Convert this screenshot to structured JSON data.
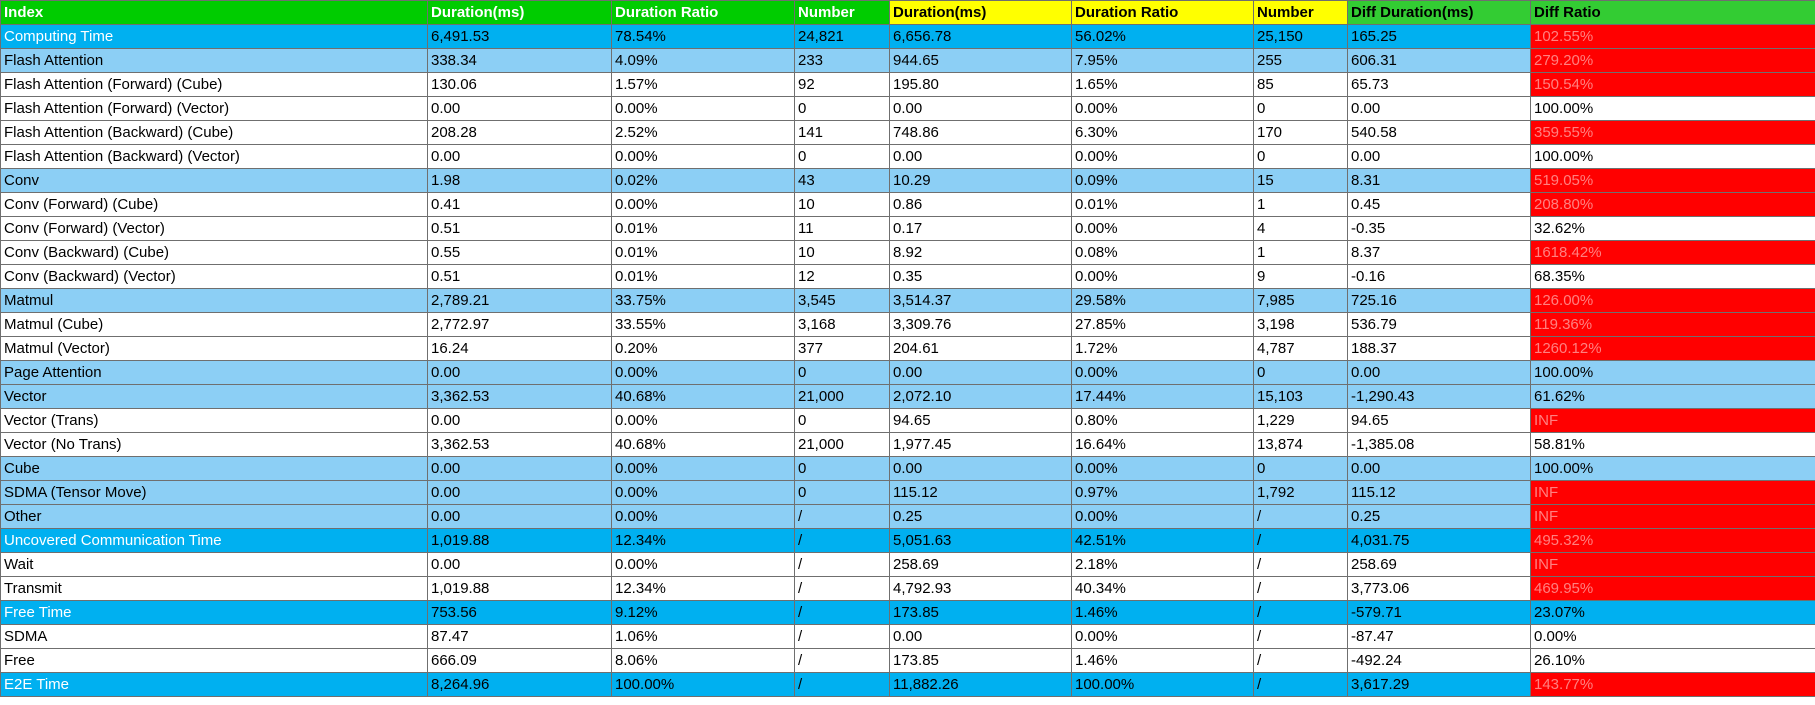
{
  "header": [
    {
      "label": "Index",
      "style": "green"
    },
    {
      "label": "Duration(ms)",
      "style": "green"
    },
    {
      "label": "Duration Ratio",
      "style": "green"
    },
    {
      "label": "Number",
      "style": "green"
    },
    {
      "label": "Duration(ms)",
      "style": "yellow"
    },
    {
      "label": "Duration Ratio",
      "style": "yellow"
    },
    {
      "label": "Number",
      "style": "yellow"
    },
    {
      "label": "Diff Duration(ms)",
      "style": "lgreen"
    },
    {
      "label": "Diff Ratio",
      "style": "lgreen"
    }
  ],
  "colors": {
    "header_base": "#00cc00",
    "header_compare": "#ffff00",
    "header_diff": "#33cc33",
    "top_level_row": "#00b0f0",
    "sub_level_row": "#8ccff5",
    "leaf_row": "#ffffff",
    "diff_alert": "#ff0000"
  },
  "rows": [
    {
      "name": "Computing Time",
      "level": 0,
      "vals": [
        "6,491.53",
        "78.54%",
        "24,821",
        "6,656.78",
        "56.02%",
        "25,150",
        "165.25",
        "102.55%"
      ],
      "red": true
    },
    {
      "name": "Flash Attention",
      "level": 1,
      "vals": [
        "338.34",
        "4.09%",
        "233",
        "944.65",
        "7.95%",
        "255",
        "606.31",
        "279.20%"
      ],
      "red": true
    },
    {
      "name": "Flash Attention (Forward) (Cube)",
      "level": 2,
      "vals": [
        "130.06",
        "1.57%",
        "92",
        "195.80",
        "1.65%",
        "85",
        "65.73",
        "150.54%"
      ],
      "red": true
    },
    {
      "name": "Flash Attention (Forward) (Vector)",
      "level": 2,
      "vals": [
        "0.00",
        "0.00%",
        "0",
        "0.00",
        "0.00%",
        "0",
        "0.00",
        "100.00%"
      ],
      "red": false
    },
    {
      "name": "Flash Attention (Backward) (Cube)",
      "level": 2,
      "vals": [
        "208.28",
        "2.52%",
        "141",
        "748.86",
        "6.30%",
        "170",
        "540.58",
        "359.55%"
      ],
      "red": true
    },
    {
      "name": "Flash Attention (Backward) (Vector)",
      "level": 2,
      "vals": [
        "0.00",
        "0.00%",
        "0",
        "0.00",
        "0.00%",
        "0",
        "0.00",
        "100.00%"
      ],
      "red": false
    },
    {
      "name": "Conv",
      "level": 1,
      "vals": [
        "1.98",
        "0.02%",
        "43",
        "10.29",
        "0.09%",
        "15",
        "8.31",
        "519.05%"
      ],
      "red": true
    },
    {
      "name": "Conv (Forward) (Cube)",
      "level": 2,
      "vals": [
        "0.41",
        "0.00%",
        "10",
        "0.86",
        "0.01%",
        "1",
        "0.45",
        "208.80%"
      ],
      "red": true
    },
    {
      "name": "Conv (Forward) (Vector)",
      "level": 2,
      "vals": [
        "0.51",
        "0.01%",
        "11",
        "0.17",
        "0.00%",
        "4",
        "-0.35",
        "32.62%"
      ],
      "red": false
    },
    {
      "name": "Conv (Backward) (Cube)",
      "level": 2,
      "vals": [
        "0.55",
        "0.01%",
        "10",
        "8.92",
        "0.08%",
        "1",
        "8.37",
        "1618.42%"
      ],
      "red": true
    },
    {
      "name": "Conv (Backward) (Vector)",
      "level": 2,
      "vals": [
        "0.51",
        "0.01%",
        "12",
        "0.35",
        "0.00%",
        "9",
        "-0.16",
        "68.35%"
      ],
      "red": false
    },
    {
      "name": "Matmul",
      "level": 1,
      "vals": [
        "2,789.21",
        "33.75%",
        "3,545",
        "3,514.37",
        "29.58%",
        "7,985",
        "725.16",
        "126.00%"
      ],
      "red": true
    },
    {
      "name": "Matmul (Cube)",
      "level": 2,
      "vals": [
        "2,772.97",
        "33.55%",
        "3,168",
        "3,309.76",
        "27.85%",
        "3,198",
        "536.79",
        "119.36%"
      ],
      "red": true
    },
    {
      "name": "Matmul (Vector)",
      "level": 2,
      "vals": [
        "16.24",
        "0.20%",
        "377",
        "204.61",
        "1.72%",
        "4,787",
        "188.37",
        "1260.12%"
      ],
      "red": true
    },
    {
      "name": "Page Attention",
      "level": 1,
      "vals": [
        "0.00",
        "0.00%",
        "0",
        "0.00",
        "0.00%",
        "0",
        "0.00",
        "100.00%"
      ],
      "red": false
    },
    {
      "name": "Vector",
      "level": 1,
      "vals": [
        "3,362.53",
        "40.68%",
        "21,000",
        "2,072.10",
        "17.44%",
        "15,103",
        "-1,290.43",
        "61.62%"
      ],
      "red": false
    },
    {
      "name": "Vector (Trans)",
      "level": 2,
      "vals": [
        "0.00",
        "0.00%",
        "0",
        "94.65",
        "0.80%",
        "1,229",
        "94.65",
        "INF"
      ],
      "red": true
    },
    {
      "name": "Vector (No Trans)",
      "level": 2,
      "vals": [
        "3,362.53",
        "40.68%",
        "21,000",
        "1,977.45",
        "16.64%",
        "13,874",
        "-1,385.08",
        "58.81%"
      ],
      "red": false
    },
    {
      "name": "Cube",
      "level": 1,
      "vals": [
        "0.00",
        "0.00%",
        "0",
        "0.00",
        "0.00%",
        "0",
        "0.00",
        "100.00%"
      ],
      "red": false
    },
    {
      "name": "SDMA (Tensor Move)",
      "level": 1,
      "vals": [
        "0.00",
        "0.00%",
        "0",
        "115.12",
        "0.97%",
        "1,792",
        "115.12",
        "INF"
      ],
      "red": true
    },
    {
      "name": "Other",
      "level": 1,
      "vals": [
        "0.00",
        "0.00%",
        "/",
        "0.25",
        "0.00%",
        "/",
        "0.25",
        "INF"
      ],
      "red": true
    },
    {
      "name": "Uncovered Communication Time",
      "level": 0,
      "vals": [
        "1,019.88",
        "12.34%",
        "/",
        "5,051.63",
        "42.51%",
        "/",
        "4,031.75",
        "495.32%"
      ],
      "red": true
    },
    {
      "name": "Wait",
      "level": 3,
      "vals": [
        "0.00",
        "0.00%",
        "/",
        "258.69",
        "2.18%",
        "/",
        "258.69",
        "INF"
      ],
      "red": true
    },
    {
      "name": "Transmit",
      "level": 3,
      "vals": [
        "1,019.88",
        "12.34%",
        "/",
        "4,792.93",
        "40.34%",
        "/",
        "3,773.06",
        "469.95%"
      ],
      "red": true
    },
    {
      "name": "Free Time",
      "level": 0,
      "vals": [
        "753.56",
        "9.12%",
        "/",
        "173.85",
        "1.46%",
        "/",
        "-579.71",
        "23.07%"
      ],
      "red": false
    },
    {
      "name": "SDMA",
      "level": 3,
      "vals": [
        "87.47",
        "1.06%",
        "/",
        "0.00",
        "0.00%",
        "/",
        "-87.47",
        "0.00%"
      ],
      "red": false
    },
    {
      "name": "Free",
      "level": 3,
      "vals": [
        "666.09",
        "8.06%",
        "/",
        "173.85",
        "1.46%",
        "/",
        "-492.24",
        "26.10%"
      ],
      "red": false
    },
    {
      "name": "E2E Time",
      "level": 0,
      "vals": [
        "8,264.96",
        "100.00%",
        "/",
        "11,882.26",
        "100.00%",
        "/",
        "3,617.29",
        "143.77%"
      ],
      "red": true
    }
  ]
}
